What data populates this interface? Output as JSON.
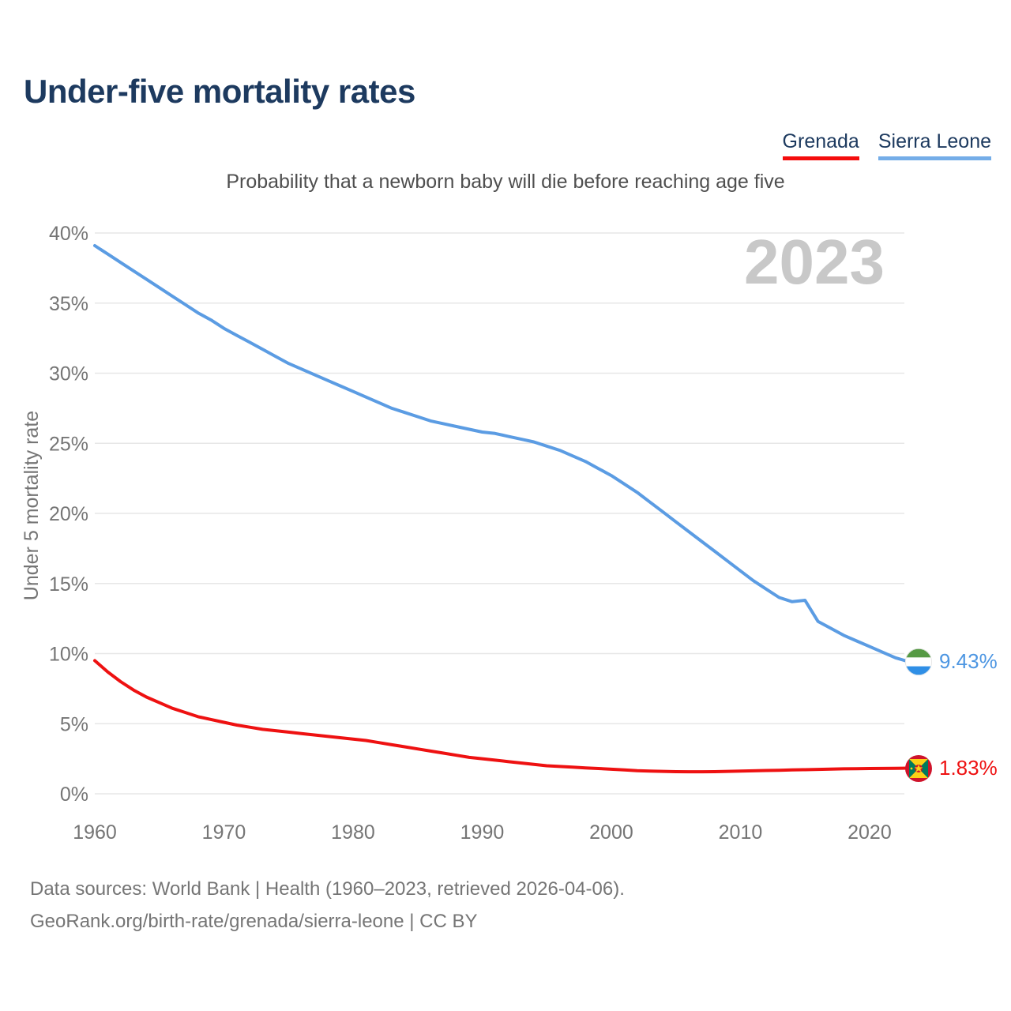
{
  "title": "Under-five mortality rates",
  "subtitle": "Probability that a newborn baby will die before reaching age five",
  "watermark_year": "2023",
  "legend": {
    "items": [
      {
        "label": "Grenada",
        "underline_color": "#f40d0d"
      },
      {
        "label": "Sierra Leone",
        "underline_color": "#74ade8"
      }
    ]
  },
  "footer": {
    "line1": "Data sources: World Bank | Health (1960–2023, retrieved 2026-04-06).",
    "line2": "GeoRank.org/birth-rate/grenada/sierra-leone | CC BY"
  },
  "colors": {
    "title_navy": "#1d3a5f",
    "subtitle_gray": "#4f4f4f",
    "tick_gray": "#757575",
    "gridline": "#e7e7e7",
    "watermark_gray": "#c8c8c8",
    "grenada_red": "#ee1111",
    "sierra_blue": "#5b9ce3",
    "sierra_label_blue": "#4d96e2"
  },
  "chart_data": {
    "type": "line",
    "title": "Under-five mortality rates",
    "subtitle": "Probability that a newborn baby will die before reaching age five",
    "xlabel": "",
    "ylabel": "Under 5 mortality rate",
    "x_range": [
      1960,
      2023
    ],
    "y_range": [
      0,
      40
    ],
    "grid": true,
    "legend_position": "top-right",
    "x_ticks": [
      1960,
      1970,
      1980,
      1990,
      2000,
      2010,
      2020
    ],
    "y_ticks": [
      {
        "label": "0%",
        "value": 0
      },
      {
        "label": "5%",
        "value": 5
      },
      {
        "label": "10%",
        "value": 10
      },
      {
        "label": "15%",
        "value": 15
      },
      {
        "label": "20%",
        "value": 20
      },
      {
        "label": "25%",
        "value": 25
      },
      {
        "label": "30%",
        "value": 30
      },
      {
        "label": "35%",
        "value": 35
      },
      {
        "label": "40%",
        "value": 40
      }
    ],
    "years": [
      1960,
      1961,
      1962,
      1963,
      1964,
      1965,
      1966,
      1967,
      1968,
      1969,
      1970,
      1971,
      1972,
      1973,
      1974,
      1975,
      1976,
      1977,
      1978,
      1979,
      1980,
      1981,
      1982,
      1983,
      1984,
      1985,
      1986,
      1987,
      1988,
      1989,
      1990,
      1991,
      1992,
      1993,
      1994,
      1995,
      1996,
      1997,
      1998,
      1999,
      2000,
      2001,
      2002,
      2003,
      2004,
      2005,
      2006,
      2007,
      2008,
      2009,
      2010,
      2011,
      2012,
      2013,
      2014,
      2015,
      2016,
      2017,
      2018,
      2019,
      2020,
      2021,
      2022,
      2023
    ],
    "series": [
      {
        "name": "Sierra Leone",
        "color_key": "sierra_blue",
        "end_label": "9.43%",
        "values": [
          39.1,
          38.5,
          37.9,
          37.3,
          36.7,
          36.1,
          35.5,
          34.9,
          34.3,
          33.8,
          33.2,
          32.7,
          32.2,
          31.7,
          31.2,
          30.7,
          30.3,
          29.9,
          29.5,
          29.1,
          28.7,
          28.3,
          27.9,
          27.5,
          27.2,
          26.9,
          26.6,
          26.4,
          26.2,
          26.0,
          25.8,
          25.7,
          25.5,
          25.3,
          25.1,
          24.8,
          24.5,
          24.1,
          23.7,
          23.2,
          22.7,
          22.1,
          21.5,
          20.8,
          20.1,
          19.4,
          18.7,
          18.0,
          17.3,
          16.6,
          15.9,
          15.2,
          14.6,
          14.0,
          13.7,
          13.8,
          12.3,
          11.8,
          11.3,
          10.9,
          10.5,
          10.1,
          9.7,
          9.43
        ]
      },
      {
        "name": "Grenada",
        "color_key": "grenada_red",
        "end_label": "1.83%",
        "values": [
          9.5,
          8.7,
          8.0,
          7.4,
          6.9,
          6.5,
          6.1,
          5.8,
          5.5,
          5.3,
          5.1,
          4.9,
          4.75,
          4.6,
          4.5,
          4.4,
          4.3,
          4.2,
          4.1,
          4.0,
          3.9,
          3.8,
          3.65,
          3.5,
          3.35,
          3.2,
          3.05,
          2.9,
          2.75,
          2.6,
          2.5,
          2.4,
          2.3,
          2.2,
          2.1,
          2.0,
          1.95,
          1.9,
          1.85,
          1.8,
          1.75,
          1.7,
          1.65,
          1.62,
          1.6,
          1.58,
          1.57,
          1.57,
          1.58,
          1.6,
          1.62,
          1.64,
          1.66,
          1.68,
          1.7,
          1.72,
          1.74,
          1.76,
          1.78,
          1.79,
          1.8,
          1.81,
          1.82,
          1.83
        ]
      }
    ]
  }
}
